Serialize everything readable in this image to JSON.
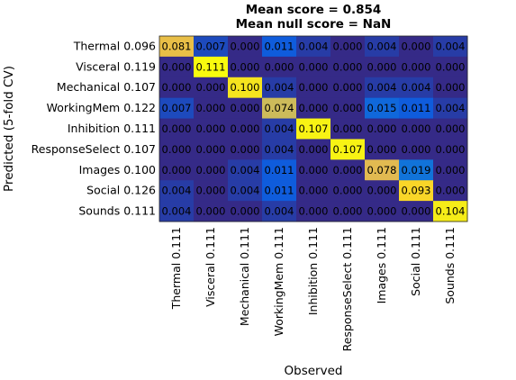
{
  "chart_data": {
    "type": "heatmap",
    "title": "Mean score = 0.854",
    "subtitle": "Mean null score = NaN",
    "xlabel": "Observed",
    "ylabel": "Predicted (5-fold CV)",
    "x_tick_labels": [
      "Thermal 0.111",
      "Visceral 0.111",
      "Mechanical 0.111",
      "WorkingMem 0.111",
      "Inhibition 0.111",
      "ResponseSelect 0.111",
      "Images 0.111",
      "Social 0.111",
      "Sounds 0.111"
    ],
    "y_tick_labels": [
      "Thermal 0.096",
      "Visceral 0.119",
      "Mechanical 0.107",
      "WorkingMem 0.122",
      "Inhibition 0.111",
      "ResponseSelect 0.107",
      "Images 0.100",
      "Social 0.126",
      "Sounds 0.111"
    ],
    "values": [
      [
        0.081,
        0.007,
        0.0,
        0.011,
        0.004,
        0.0,
        0.004,
        0.0,
        0.004
      ],
      [
        0.0,
        0.111,
        0.0,
        0.0,
        0.0,
        0.0,
        0.0,
        0.0,
        0.0
      ],
      [
        0.0,
        0.0,
        0.1,
        0.004,
        0.0,
        0.0,
        0.004,
        0.004,
        0.0
      ],
      [
        0.007,
        0.0,
        0.0,
        0.074,
        0.0,
        0.0,
        0.015,
        0.011,
        0.004
      ],
      [
        0.0,
        0.0,
        0.0,
        0.004,
        0.107,
        0.0,
        0.0,
        0.0,
        0.0
      ],
      [
        0.0,
        0.0,
        0.0,
        0.004,
        0.0,
        0.107,
        0.0,
        0.0,
        0.0
      ],
      [
        0.0,
        0.0,
        0.004,
        0.011,
        0.0,
        0.0,
        0.078,
        0.019,
        0.0
      ],
      [
        0.004,
        0.0,
        0.004,
        0.011,
        0.0,
        0.0,
        0.0,
        0.093,
        0.0
      ],
      [
        0.004,
        0.0,
        0.0,
        0.004,
        0.0,
        0.0,
        0.0,
        0.0,
        0.104
      ]
    ],
    "cell_labels": [
      [
        "0.081",
        "0.007",
        "0.000",
        "0.011",
        "0.004",
        "0.000",
        "0.004",
        "0.000",
        "0.004"
      ],
      [
        "0.000",
        "0.111",
        "0.000",
        "0.000",
        "0.000",
        "0.000",
        "0.000",
        "0.000",
        "0.000"
      ],
      [
        "0.000",
        "0.000",
        "0.100",
        "0.004",
        "0.000",
        "0.000",
        "0.004",
        "0.004",
        "0.000"
      ],
      [
        "0.007",
        "0.000",
        "0.000",
        "0.074",
        "0.000",
        "0.000",
        "0.015",
        "0.011",
        "0.004"
      ],
      [
        "0.000",
        "0.000",
        "0.000",
        "0.004",
        "0.107",
        "0.000",
        "0.000",
        "0.000",
        "0.000"
      ],
      [
        "0.000",
        "0.000",
        "0.000",
        "0.004",
        "0.000",
        "0.107",
        "0.000",
        "0.000",
        "0.000"
      ],
      [
        "0.000",
        "0.000",
        "0.004",
        "0.011",
        "0.000",
        "0.000",
        "0.078",
        "0.019",
        "0.000"
      ],
      [
        "0.004",
        "0.000",
        "0.004",
        "0.011",
        "0.000",
        "0.000",
        "0.000",
        "0.093",
        "0.000"
      ],
      [
        "0.004",
        "0.000",
        "0.000",
        "0.004",
        "0.000",
        "0.000",
        "0.000",
        "0.000",
        "0.104"
      ]
    ],
    "color_range": [
      0,
      0.111
    ],
    "colormap": "parula",
    "grid": false
  }
}
